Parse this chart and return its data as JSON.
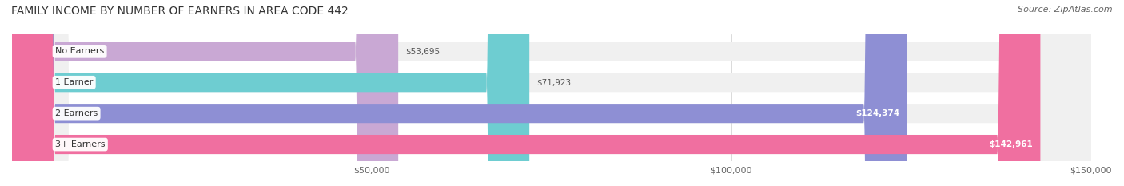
{
  "title": "FAMILY INCOME BY NUMBER OF EARNERS IN AREA CODE 442",
  "source": "Source: ZipAtlas.com",
  "categories": [
    "No Earners",
    "1 Earner",
    "2 Earners",
    "3+ Earners"
  ],
  "values": [
    53695,
    71923,
    124374,
    142961
  ],
  "bar_colors": [
    "#c9a8d4",
    "#6ecdd1",
    "#8e8fd4",
    "#f06fa0"
  ],
  "bar_bg_color": "#f0f0f0",
  "label_bg_color": "#ffffff",
  "xlim": [
    0,
    150000
  ],
  "xticks": [
    50000,
    100000,
    150000
  ],
  "xtick_labels": [
    "$50,000",
    "$100,000",
    "$150,000"
  ],
  "figsize": [
    14.06,
    2.33
  ],
  "dpi": 100,
  "bar_height": 0.62,
  "title_fontsize": 10,
  "source_fontsize": 8,
  "label_fontsize": 8,
  "value_fontsize": 7.5,
  "tick_fontsize": 8
}
